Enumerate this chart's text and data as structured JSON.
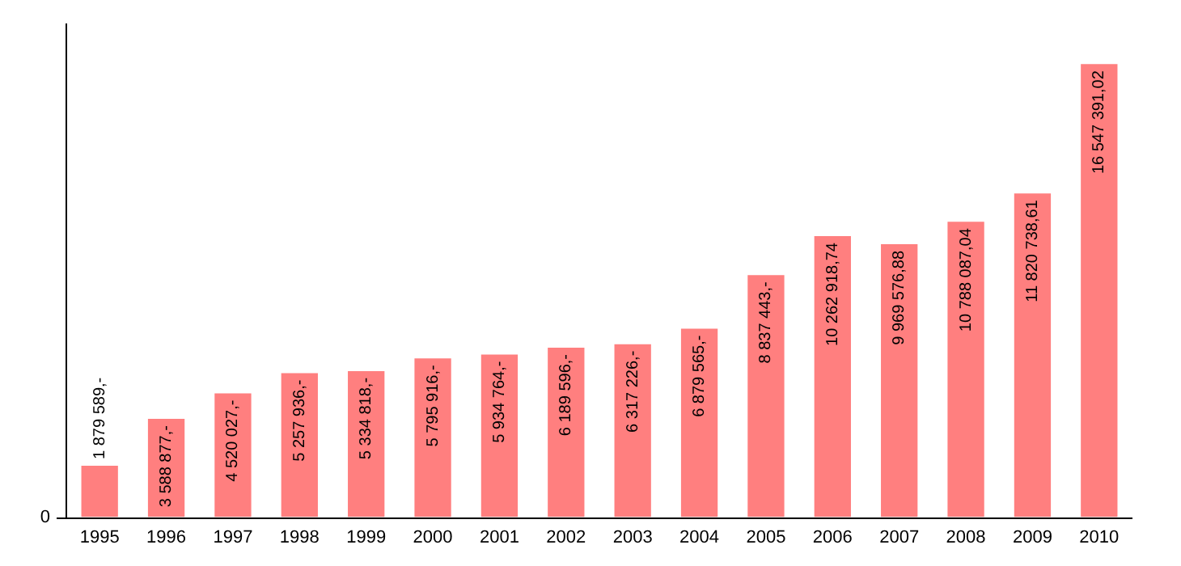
{
  "chart_data": {
    "type": "bar",
    "categories": [
      "1995",
      "1996",
      "1997",
      "1998",
      "1999",
      "2000",
      "2001",
      "2002",
      "2003",
      "2004",
      "2005",
      "2006",
      "2007",
      "2008",
      "2009",
      "2010"
    ],
    "values": [
      1879589,
      3588877,
      4520027,
      5257936,
      5334818,
      5795916,
      5934764,
      6189596,
      6317226,
      6879565,
      8837443,
      10262918.74,
      9969576.88,
      10788087.04,
      11820738.61,
      16547391.02
    ],
    "value_labels": [
      "1 879 589,-",
      "3 588 877,-",
      "4 520 027,-",
      "5 257 936,-",
      "5 334 818,-",
      "5 795 916,-",
      "5 934 764,-",
      "6 189 596,-",
      "6 317 226,-",
      "6 879 565,-",
      "8 837 443,-",
      "10 262 918,74",
      "9 969 576,88",
      "10 788 087,04",
      "11 820 738,61",
      "16 547 391,02"
    ],
    "color": "#ff7f7f",
    "annotations": [
      "0"
    ],
    "grid": false,
    "legend": false
  }
}
